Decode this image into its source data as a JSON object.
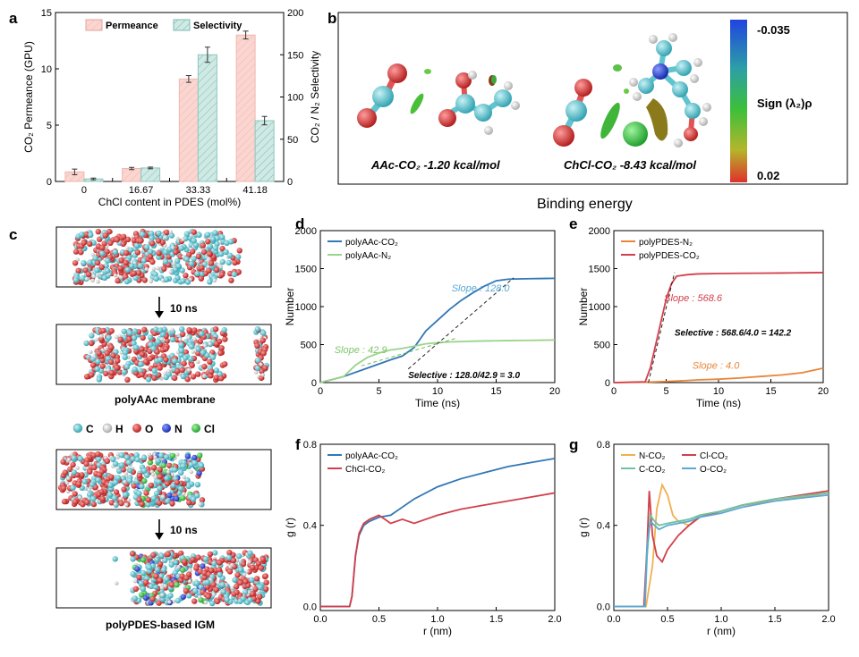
{
  "panel_letters": {
    "a": "a",
    "b": "b",
    "c": "c",
    "d": "d",
    "e": "e",
    "f": "f",
    "g": "g"
  },
  "colors": {
    "red": "#d2404c",
    "teal": "#3aa8a0",
    "blue": "#3277b6",
    "green": "#9bd38a",
    "orange": "#e8863a",
    "pinkfill": "#f7c9c4",
    "tealfill": "#b7e0d9",
    "skyblue": "#5aa9d6"
  },
  "panel_b": {
    "label_aac": "AAc-CO₂ -1.20 kcal/mol",
    "label_chcl": "ChCl-CO₂ -8.43 kcal/mol",
    "caption": "Binding energy",
    "colorbar_top": "-0.035",
    "colorbar_bottom": "0.02",
    "colorbar_label": "Sign (λ₂)ρ"
  },
  "panel_c": {
    "arrow_label_1": "10 ns",
    "arrow_label_2": "10 ns",
    "caption_1": "polyAAc membrane",
    "caption_2": "polyPDES-based IGM",
    "legend": [
      {
        "symbol": "C",
        "color": "#7fd3df"
      },
      {
        "symbol": "H",
        "color": "#e8e8e8"
      },
      {
        "symbol": "O",
        "color": "#d94040"
      },
      {
        "symbol": "N",
        "color": "#3b52c8"
      },
      {
        "symbol": "Cl",
        "color": "#3fbf48"
      }
    ]
  },
  "chart_data": [
    {
      "id": "a",
      "type": "bar",
      "title": "",
      "categories": [
        "0",
        "16.67",
        "33.33",
        "41.18"
      ],
      "xlabel": "ChCl content in PDES (mol%)",
      "ylabel": "CO₂ Permeance (GPU)",
      "y2label": "CO₂ / N₂ Selectivity",
      "ylim": [
        0,
        15
      ],
      "y2lim": [
        0,
        200
      ],
      "yticks": [
        0,
        5,
        10,
        15
      ],
      "y2ticks": [
        0,
        50,
        100,
        150,
        200
      ],
      "series": [
        {
          "name": "Permeance",
          "axis": "left",
          "values": [
            0.85,
            1.15,
            9.1,
            13.0
          ],
          "errors": [
            0.25,
            0.1,
            0.3,
            0.35
          ]
        },
        {
          "name": "Selectivity",
          "axis": "right",
          "values": [
            3.0,
            16.0,
            150.0,
            72.0
          ],
          "errors": [
            1.0,
            1.0,
            9.0,
            5.0
          ]
        }
      ],
      "legend": "top"
    },
    {
      "id": "d",
      "type": "line",
      "xlabel": "Time (ns)",
      "ylabel": "Number",
      "xlim": [
        0,
        20
      ],
      "ylim": [
        0,
        2000
      ],
      "xticks": [
        0,
        5,
        10,
        15,
        20
      ],
      "yticks": [
        0,
        500,
        1000,
        1500,
        2000
      ],
      "series": [
        {
          "name": "polyAAc-CO₂",
          "x": [
            0,
            2,
            4,
            6,
            7,
            8,
            9,
            10,
            11,
            12,
            13,
            14,
            15,
            16,
            17,
            18,
            19,
            20
          ],
          "y": [
            0,
            80,
            190,
            300,
            350,
            460,
            680,
            820,
            960,
            1080,
            1180,
            1270,
            1340,
            1360,
            1365,
            1368,
            1370,
            1372
          ]
        },
        {
          "name": "polyAAc-N₂",
          "x": [
            0,
            2,
            3,
            4,
            5,
            6,
            7,
            8,
            9,
            10,
            11,
            12,
            13,
            14,
            15,
            16,
            17,
            18,
            19,
            20
          ],
          "y": [
            0,
            80,
            230,
            330,
            390,
            430,
            450,
            480,
            510,
            525,
            535,
            540,
            545,
            548,
            550,
            552,
            554,
            556,
            558,
            560
          ]
        }
      ],
      "annotations": [
        "Slope : 128.0",
        "Slope : 42.9",
        "Selective : 128.0/42.9 = 3.0"
      ],
      "legend": "top-left"
    },
    {
      "id": "e",
      "type": "line",
      "xlabel": "Time (ns)",
      "ylabel": "Number",
      "xlim": [
        0,
        20
      ],
      "ylim": [
        0,
        2000
      ],
      "xticks": [
        0,
        5,
        10,
        15,
        20
      ],
      "yticks": [
        0,
        500,
        1000,
        1500,
        2000
      ],
      "series": [
        {
          "name": "polyPDES-N₂",
          "x": [
            0,
            3,
            4,
            5,
            6,
            8,
            10,
            12,
            14,
            16,
            18,
            19,
            20
          ],
          "y": [
            0,
            5,
            10,
            15,
            20,
            35,
            45,
            60,
            80,
            100,
            130,
            160,
            190
          ]
        },
        {
          "name": "polyPDES-CO₂",
          "x": [
            0,
            3,
            3.5,
            4,
            4.5,
            5,
            5.5,
            6,
            7,
            8,
            10,
            12,
            14,
            16,
            18,
            20
          ],
          "y": [
            0,
            10,
            200,
            500,
            800,
            1100,
            1300,
            1400,
            1420,
            1430,
            1435,
            1438,
            1440,
            1442,
            1445,
            1448
          ]
        }
      ],
      "annotations": [
        "Slope : 568.6",
        "Selective : 568.6/4.0 = 142.2",
        "Slope : 4.0"
      ],
      "legend": "top-left"
    },
    {
      "id": "f",
      "type": "line",
      "xlabel": "r (nm)",
      "ylabel": "g (r)",
      "xlim": [
        0,
        2.0
      ],
      "ylim": [
        -0.02,
        0.8
      ],
      "xticks": [
        0.0,
        0.5,
        1.0,
        1.5,
        2.0
      ],
      "yticks": [
        0.0,
        0.4,
        0.8
      ],
      "series": [
        {
          "name": "polyAAc-CO₂",
          "x": [
            0,
            0.25,
            0.27,
            0.3,
            0.33,
            0.37,
            0.42,
            0.5,
            0.6,
            0.7,
            0.8,
            1.0,
            1.2,
            1.4,
            1.6,
            1.8,
            2.0
          ],
          "y": [
            0,
            0,
            0.05,
            0.25,
            0.35,
            0.4,
            0.42,
            0.44,
            0.45,
            0.49,
            0.53,
            0.59,
            0.63,
            0.66,
            0.69,
            0.71,
            0.73
          ]
        },
        {
          "name": "ChCl-CO₂",
          "x": [
            0,
            0.25,
            0.27,
            0.3,
            0.33,
            0.37,
            0.42,
            0.5,
            0.55,
            0.6,
            0.7,
            0.8,
            1.0,
            1.2,
            1.4,
            1.6,
            1.8,
            2.0
          ],
          "y": [
            0,
            0,
            0.05,
            0.25,
            0.36,
            0.41,
            0.43,
            0.45,
            0.43,
            0.41,
            0.43,
            0.41,
            0.45,
            0.48,
            0.5,
            0.52,
            0.54,
            0.56
          ]
        }
      ],
      "legend": "top-left"
    },
    {
      "id": "g",
      "type": "line",
      "xlabel": "r (nm)",
      "ylabel": "g (r)",
      "xlim": [
        0,
        2.0
      ],
      "ylim": [
        -0.02,
        0.8
      ],
      "xticks": [
        0.0,
        0.5,
        1.0,
        1.5,
        2.0
      ],
      "yticks": [
        0.0,
        0.4,
        0.8
      ],
      "series": [
        {
          "name": "N-CO₂",
          "x": [
            0,
            0.3,
            0.36,
            0.4,
            0.45,
            0.5,
            0.55,
            0.6,
            0.7,
            0.8,
            1.0,
            1.2,
            1.5,
            2.0
          ],
          "y": [
            0,
            0,
            0.2,
            0.48,
            0.6,
            0.55,
            0.45,
            0.42,
            0.4,
            0.45,
            0.47,
            0.5,
            0.52,
            0.56
          ]
        },
        {
          "name": "Cl-CO₂",
          "x": [
            0,
            0.28,
            0.31,
            0.33,
            0.36,
            0.4,
            0.45,
            0.5,
            0.6,
            0.7,
            0.8,
            1.0,
            1.2,
            1.5,
            2.0
          ],
          "y": [
            0,
            0,
            0.3,
            0.57,
            0.35,
            0.25,
            0.22,
            0.28,
            0.35,
            0.4,
            0.44,
            0.47,
            0.5,
            0.53,
            0.57
          ]
        },
        {
          "name": "C-CO₂",
          "x": [
            0,
            0.29,
            0.31,
            0.34,
            0.38,
            0.42,
            0.5,
            0.6,
            0.7,
            0.8,
            1.0,
            1.2,
            1.5,
            2.0
          ],
          "y": [
            0,
            0,
            0.25,
            0.45,
            0.42,
            0.4,
            0.41,
            0.42,
            0.43,
            0.45,
            0.47,
            0.5,
            0.53,
            0.56
          ]
        },
        {
          "name": "O-CO₂",
          "x": [
            0,
            0.29,
            0.31,
            0.34,
            0.38,
            0.42,
            0.5,
            0.6,
            0.7,
            0.8,
            1.0,
            1.2,
            1.5,
            2.0
          ],
          "y": [
            0,
            0,
            0.3,
            0.42,
            0.4,
            0.38,
            0.4,
            0.41,
            0.42,
            0.44,
            0.46,
            0.49,
            0.52,
            0.55
          ]
        }
      ],
      "legend": "top-left"
    }
  ]
}
